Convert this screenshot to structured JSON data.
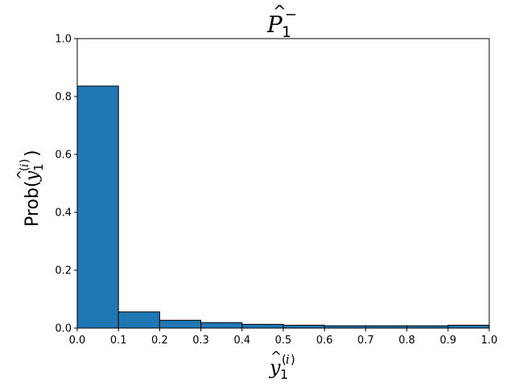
{
  "chart_data": {
    "type": "bar",
    "title": "P̂₁⁻",
    "xlabel": "ŷ₁⁽ⁱ⁾",
    "ylabel": "Prob(ŷ₁⁽ⁱ⁾)",
    "bin_edges": [
      0.0,
      0.1,
      0.2,
      0.3,
      0.4,
      0.5,
      0.6,
      0.7,
      0.8,
      0.9,
      1.0
    ],
    "values": [
      0.836,
      0.056,
      0.027,
      0.019,
      0.013,
      0.01,
      0.008,
      0.008,
      0.008,
      0.01
    ],
    "xlim": [
      0.0,
      1.0
    ],
    "ylim": [
      0.0,
      1.0
    ],
    "xticks": [
      "0.0",
      "0.1",
      "0.2",
      "0.3",
      "0.4",
      "0.5",
      "0.6",
      "0.7",
      "0.8",
      "0.9",
      "1.0"
    ],
    "yticks": [
      "0.0",
      "0.2",
      "0.4",
      "0.6",
      "0.8",
      "1.0"
    ],
    "grid": false,
    "legend": "none",
    "colors": {
      "bar_fill": "#1f77b4",
      "bar_edge": "#000000"
    }
  }
}
